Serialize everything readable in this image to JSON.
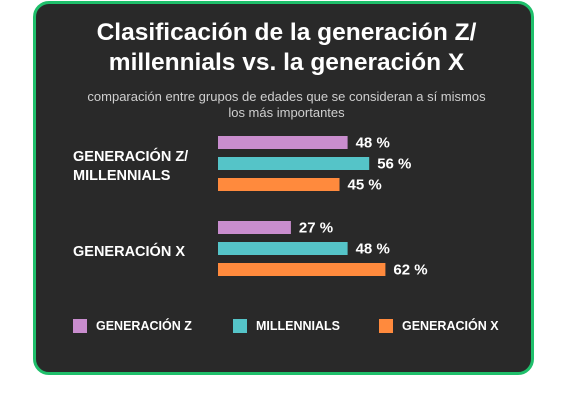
{
  "chart_data": {
    "type": "bar",
    "orientation": "horizontal",
    "title": "Clasificación de la generación Z/ millennials vs. la generación X",
    "subtitle": "comparación entre grupos de edades que se consideran a sí mismos los más importantes",
    "categories": [
      "GENERACIÓN Z/ MILLENNIALS",
      "GENERACIÓN X"
    ],
    "series": [
      {
        "name": "GENERACIÓN Z",
        "color": "#c98dce",
        "values": [
          48,
          27
        ],
        "labels": [
          "48 %",
          "27 %"
        ]
      },
      {
        "name": "MILLENNIALS",
        "color": "#55c4c8",
        "values": [
          56,
          48
        ],
        "labels": [
          "56 %",
          "48 %"
        ]
      },
      {
        "name": "GENERACIÓN X",
        "color": "#ff8a3d",
        "values": [
          45,
          62
        ],
        "labels": [
          "45 %",
          "62 %"
        ]
      }
    ],
    "xlim": [
      0,
      100
    ],
    "grid": false,
    "legend_position": "bottom"
  },
  "colors": {
    "background": "#292929",
    "border": "#1fbf6b",
    "text": "#ffffff"
  }
}
